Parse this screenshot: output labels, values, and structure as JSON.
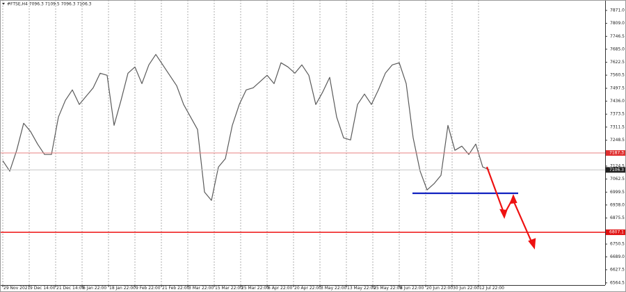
{
  "chart_data": {
    "type": "line",
    "title": "#FTSE,H4  7096.3 7109.5 7096.3 7106.3",
    "series": [
      {
        "color": "#5a5a5a",
        "x": [
          0,
          1,
          2,
          3,
          4,
          5,
          6,
          7,
          8,
          9,
          10,
          11,
          12,
          13,
          14,
          15,
          16,
          17,
          18,
          19,
          20,
          21,
          22,
          23,
          24,
          25,
          26,
          27,
          28,
          29,
          30,
          31,
          32,
          33,
          34,
          35,
          36,
          37,
          38,
          39,
          40,
          41,
          42,
          43,
          44,
          45,
          46,
          47,
          48,
          49,
          50,
          51,
          52,
          53,
          54,
          55,
          56,
          57,
          58,
          59,
          60,
          61,
          62,
          63,
          64,
          65,
          66,
          67,
          68,
          69,
          70
        ],
        "values": [
          7150,
          7100,
          7200,
          7330,
          7290,
          7230,
          7180,
          7180,
          7360,
          7440,
          7490,
          7420,
          7460,
          7500,
          7570,
          7560,
          7320,
          7440,
          7570,
          7600,
          7520,
          7610,
          7660,
          7610,
          7560,
          7510,
          7420,
          7360,
          7300,
          7000,
          6960,
          7120,
          7160,
          7320,
          7420,
          7490,
          7500,
          7530,
          7560,
          7520,
          7620,
          7600,
          7570,
          7610,
          7560,
          7420,
          7480,
          7550,
          7360,
          7260,
          7250,
          7420,
          7470,
          7420,
          7490,
          7570,
          7610,
          7620,
          7520,
          7260,
          7100,
          7010,
          7040,
          7080,
          7320,
          7200,
          7220,
          7180,
          7230,
          7120,
          7106.3
        ]
      }
    ],
    "xlim": [
      -0.4,
      86.6
    ],
    "xticks": [
      {
        "value": 0,
        "label": "29 Nov 2021"
      },
      {
        "value": 3.8,
        "label": "9 Dec 14:00"
      },
      {
        "value": 7.6,
        "label": "21 Dec 14:00"
      },
      {
        "value": 11.4,
        "label": "6 Jan 22:00"
      },
      {
        "value": 15.2,
        "label": "18 Jan 22:00"
      },
      {
        "value": 19,
        "label": "9 Feb 22:00"
      },
      {
        "value": 22.8,
        "label": "21 Feb 22:00"
      },
      {
        "value": 26.6,
        "label": "3 Mar 22:00"
      },
      {
        "value": 30.4,
        "label": "15 Mar 22:00"
      },
      {
        "value": 34.2,
        "label": "25 Mar 22:00"
      },
      {
        "value": 38,
        "label": "6 Apr 22:00"
      },
      {
        "value": 41.8,
        "label": "20 Apr 22:00"
      },
      {
        "value": 45.6,
        "label": "3 May 22:00"
      },
      {
        "value": 49.4,
        "label": "13 May 22:00"
      },
      {
        "value": 53.2,
        "label": "25 May 22:00"
      },
      {
        "value": 57,
        "label": "8 Jun 22:00"
      },
      {
        "value": 60.8,
        "label": "20 Jun 22:00"
      },
      {
        "value": 64.6,
        "label": "30 Jun 22:00"
      },
      {
        "value": 68.4,
        "label": "12 Jul 22:00"
      }
    ],
    "ylim": [
      6554,
      7921
    ],
    "yticks": [
      {
        "value": 7871,
        "label": "7871.0"
      },
      {
        "value": 7809,
        "label": "7809.0"
      },
      7746.5,
      {
        "value": 7685,
        "label": "7685.0"
      },
      7622.5,
      7560.5,
      7497.5,
      {
        "value": 7436,
        "label": "7436.0"
      },
      7373.5,
      7311.5,
      7248.5,
      7124.5,
      7062.5,
      6999.5,
      {
        "value": 6938,
        "label": "6938.0"
      },
      6875.5,
      6750.5,
      {
        "value": 6689,
        "label": "6689.0"
      },
      6627.5,
      6564.5
    ],
    "grid": true,
    "levels": [
      {
        "value": 7187.3,
        "color": "#e88080",
        "box": "#e03030"
      },
      {
        "value": 7106.3,
        "color": "#c8c8c8",
        "box": "#222222"
      },
      {
        "value": 6807.1,
        "color": "#ee1111",
        "box": "#e01010"
      }
    ],
    "support": {
      "value": 6994,
      "x": [
        58.9,
        74.1
      ],
      "color": "#1020c0"
    }
  }
}
